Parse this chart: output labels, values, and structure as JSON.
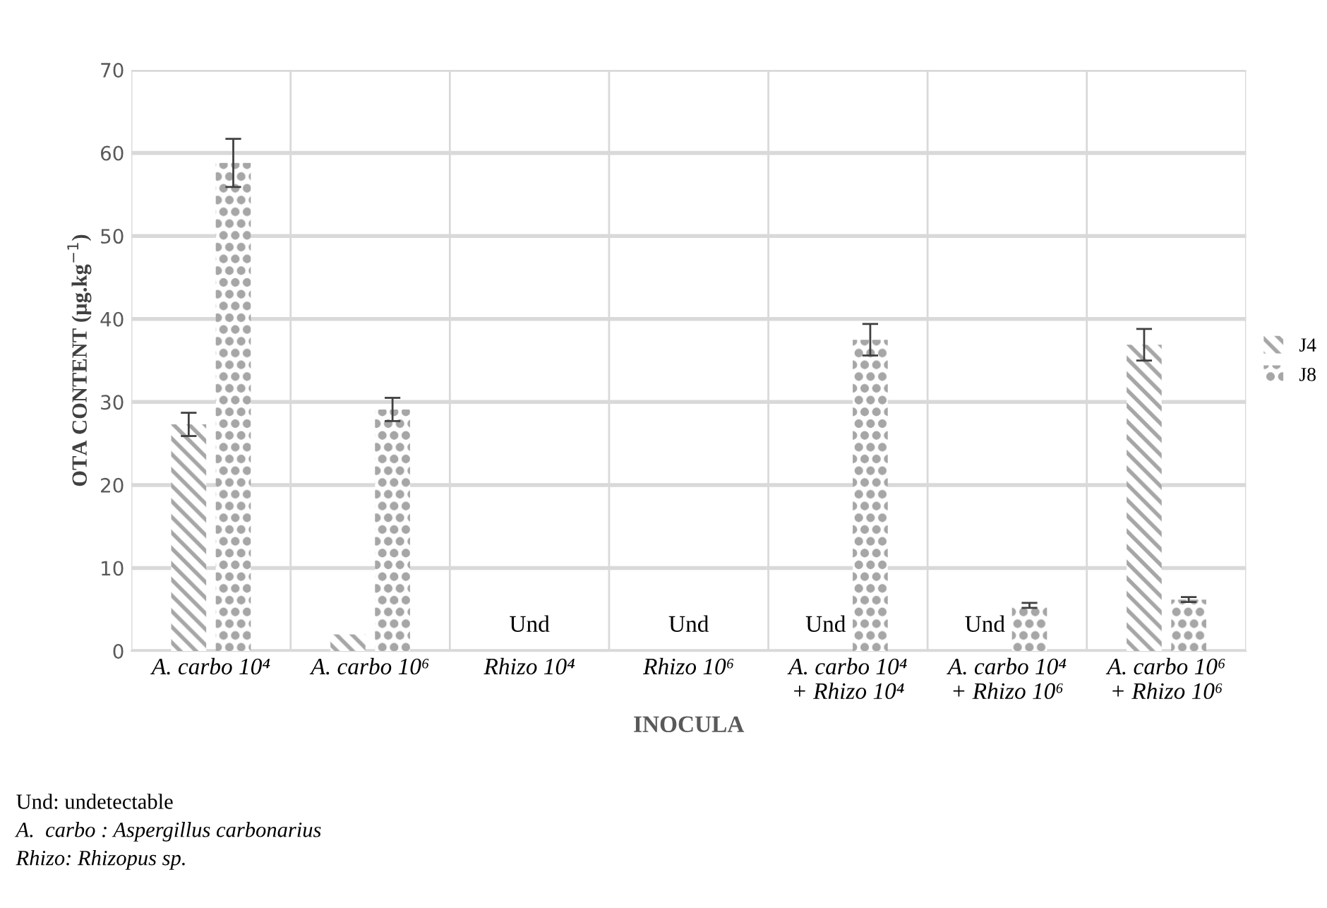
{
  "chart_data": {
    "type": "bar",
    "categories": [
      "A. carbo 10⁴",
      "A. carbo 10⁶",
      "Rhizo 10⁴",
      "Rhizo 10⁶",
      "A. carbo 10⁴\n+ Rhizo 10⁴",
      "A. carbo 10⁴\n+ Rhizo 10⁶",
      "A. carbo 10⁶\n+ Rhizo 10⁶"
    ],
    "series": [
      {
        "name": "J4",
        "color": "#a6a6a6",
        "values": [
          27.3,
          2.0,
          null,
          null,
          null,
          null,
          36.9
        ],
        "errors": [
          1.4,
          null,
          null,
          null,
          null,
          null,
          1.9
        ],
        "value_labels": [
          null,
          null,
          "Und",
          "Und",
          "Und",
          "Und",
          null
        ]
      },
      {
        "name": "J8",
        "color": "#a6a6a6",
        "values": [
          58.8,
          29.1,
          null,
          null,
          37.5,
          5.5,
          6.2
        ],
        "errors": [
          2.9,
          1.4,
          null,
          null,
          1.9,
          0.3,
          0.3
        ]
      }
    ],
    "xlabel": "INOCULA",
    "ylabel": "OTA CONTENT (µg.kg$^{−1}$)",
    "ylim": [
      0,
      70
    ],
    "yticks": [
      0,
      10,
      20,
      30,
      40,
      50,
      60,
      70
    ],
    "grid": true,
    "legend": "right",
    "annotations": [
      "Und: undetectable",
      "A.  carbo : Aspergillus carbonarius",
      "Rhizo: Rhizopus sp."
    ]
  }
}
